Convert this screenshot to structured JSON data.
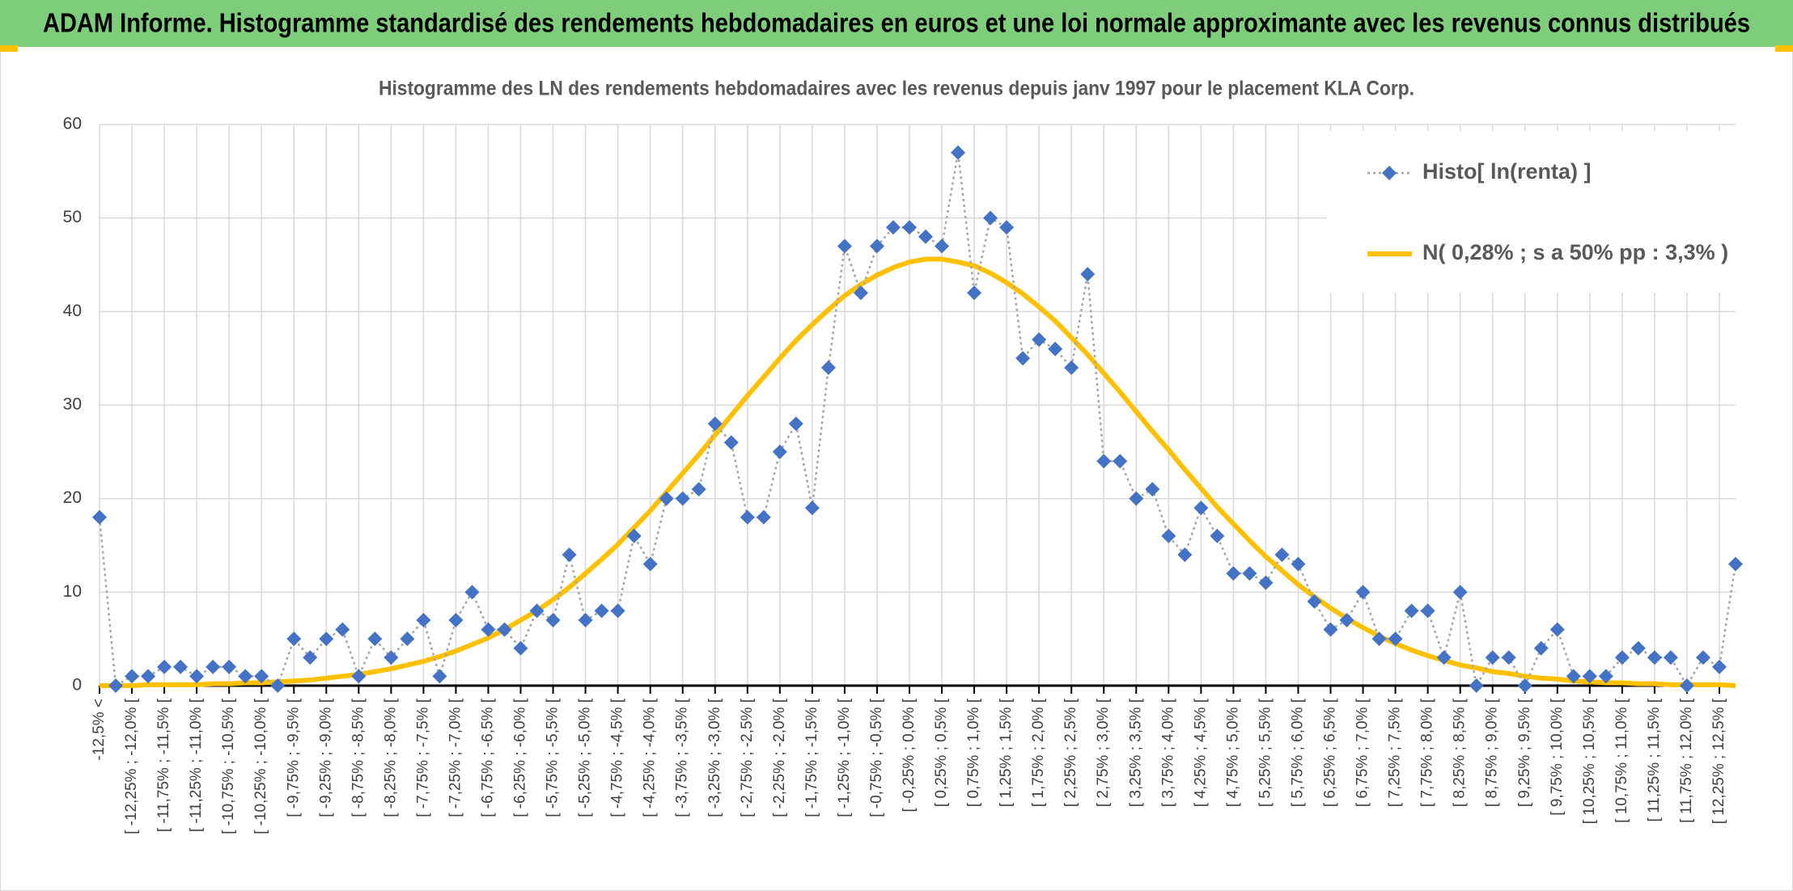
{
  "chart_data": {
    "type": "line",
    "title": "ADAM Informe. Histogramme standardisé des rendements hebdomadaires en euros et une loi normale approximante avec les revenus connus distribués",
    "subtitle": "Histogramme des LN des rendements hebdomadaires avec les revenus depuis janv 1997 pour le placement KLA Corp.",
    "categories": [
      "-12,5% <",
      null,
      "[ -12,25% ; -12,0% [",
      null,
      "[ -11,75% ; -11,5% [",
      null,
      "[ -11,25% ; -11,0% [",
      null,
      "[ -10,75% ; -10,5% [",
      null,
      "[ -10,25% ; -10,0% [",
      null,
      "[ -9,75% ; -9,5% [",
      null,
      "[ -9,25% ; -9,0% [",
      null,
      "[ -8,75% ; -8,5% [",
      null,
      "[ -8,25% ; -8,0% [",
      null,
      "[ -7,75% ; -7,5% [",
      null,
      "[ -7,25% ; -7,0% [",
      null,
      "[ -6,75% ; -6,5% [",
      null,
      "[ -6,25% ; -6,0% [",
      null,
      "[ -5,75% ; -5,5% [",
      null,
      "[ -5,25% ; -5,0% [",
      null,
      "[ -4,75% ; -4,5% [",
      null,
      "[ -4,25% ; -4,0% [",
      null,
      "[ -3,75% ; -3,5% [",
      null,
      "[ -3,25% ; -3,0% [",
      null,
      "[ -2,75% ; -2,5% [",
      null,
      "[ -2,25% ; -2,0% [",
      null,
      "[ -1,75% ; -1,5% [",
      null,
      "[ -1,25% ; -1,0% [",
      null,
      "[ -0,75% ; -0,5% [",
      null,
      "[ -0,25% ; 0,0% [",
      null,
      "[ 0,25% ; 0,5% [",
      null,
      "[ 0,75% ; 1,0% [",
      null,
      "[ 1,25% ; 1,5% [",
      null,
      "[ 1,75% ; 2,0% [",
      null,
      "[ 2,25% ; 2,5% [",
      null,
      "[ 2,75% ; 3,0% [",
      null,
      "[ 3,25% ; 3,5% [",
      null,
      "[ 3,75% ; 4,0% [",
      null,
      "[ 4,25% ; 4,5% [",
      null,
      "[ 4,75% ; 5,0% [",
      null,
      "[ 5,25% ; 5,5% [",
      null,
      "[ 5,75% ; 6,0% [",
      null,
      "[ 6,25% ; 6,5% [",
      null,
      "[ 6,75% ; 7,0% [",
      null,
      "[ 7,25% ; 7,5% [",
      null,
      "[ 7,75% ; 8,0% [",
      null,
      "[ 8,25% ; 8,5% [",
      null,
      "[ 8,75% ; 9,0% [",
      null,
      "[ 9,25% ; 9,5% [",
      null,
      "[ 9,75% ; 10,0% [",
      null,
      "[ 10,25% ; 10,5% [",
      null,
      "[ 10,75% ; 11,0% [",
      null,
      "[ 11,25% ; 11,5% [",
      null,
      "[ 11,75% ; 12,0% [",
      null,
      "[ 12,25% ; 12,5% [",
      null
    ],
    "series": [
      {
        "name": "Histo[ ln(renta) ]",
        "color": "#4472c4",
        "line_color": "#a6a6a6",
        "line_style": "dotted",
        "marker": "diamond",
        "values": [
          18,
          0,
          1,
          1,
          2,
          2,
          1,
          2,
          2,
          1,
          1,
          0,
          5,
          3,
          5,
          6,
          1,
          5,
          3,
          5,
          7,
          1,
          7,
          10,
          6,
          6,
          4,
          8,
          7,
          14,
          7,
          8,
          8,
          16,
          13,
          20,
          20,
          21,
          28,
          26,
          18,
          18,
          25,
          28,
          19,
          34,
          47,
          42,
          47,
          49,
          49,
          48,
          47,
          57,
          42,
          50,
          49,
          35,
          37,
          36,
          34,
          44,
          24,
          24,
          20,
          21,
          16,
          14,
          19,
          16,
          12,
          12,
          11,
          14,
          13,
          9,
          6,
          7,
          10,
          5,
          5,
          8,
          8,
          3,
          10,
          0,
          3,
          3,
          0,
          4,
          6,
          1,
          1,
          1,
          3,
          4,
          3,
          3,
          0,
          3,
          2,
          13
        ]
      },
      {
        "name": "N( 0,28% ; s a 50% pp : 3,3% )",
        "color": "#ffc000",
        "line_style": "solid",
        "marker": "none",
        "values": [
          0.0,
          0.0,
          0.0,
          0.1,
          0.1,
          0.1,
          0.1,
          0.2,
          0.2,
          0.3,
          0.3,
          0.4,
          0.5,
          0.6,
          0.8,
          1.0,
          1.2,
          1.5,
          1.8,
          2.2,
          2.6,
          3.1,
          3.7,
          4.4,
          5.1,
          6.0,
          7.0,
          8.0,
          9.2,
          10.5,
          12.0,
          13.5,
          15.1,
          16.9,
          18.7,
          20.7,
          22.7,
          24.7,
          26.8,
          28.9,
          31.0,
          33.0,
          35.0,
          36.9,
          38.6,
          40.2,
          41.7,
          42.9,
          43.9,
          44.7,
          45.3,
          45.6,
          45.6,
          45.3,
          44.9,
          44.1,
          43.1,
          41.9,
          40.5,
          39.0,
          37.2,
          35.4,
          33.4,
          31.4,
          29.3,
          27.2,
          25.2,
          23.1,
          21.1,
          19.1,
          17.3,
          15.5,
          13.8,
          12.3,
          10.8,
          9.5,
          8.3,
          7.2,
          6.2,
          5.3,
          4.5,
          3.8,
          3.2,
          2.7,
          2.2,
          1.9,
          1.5,
          1.3,
          1.0,
          0.8,
          0.7,
          0.5,
          0.4,
          0.3,
          0.3,
          0.2,
          0.2,
          0.1,
          0.1,
          0.1,
          0.1,
          0.0
        ]
      }
    ],
    "ylim": [
      0,
      60
    ],
    "yticks": [
      0,
      10,
      20,
      30,
      40,
      50,
      60
    ],
    "grid": true,
    "legend": "upper right"
  }
}
